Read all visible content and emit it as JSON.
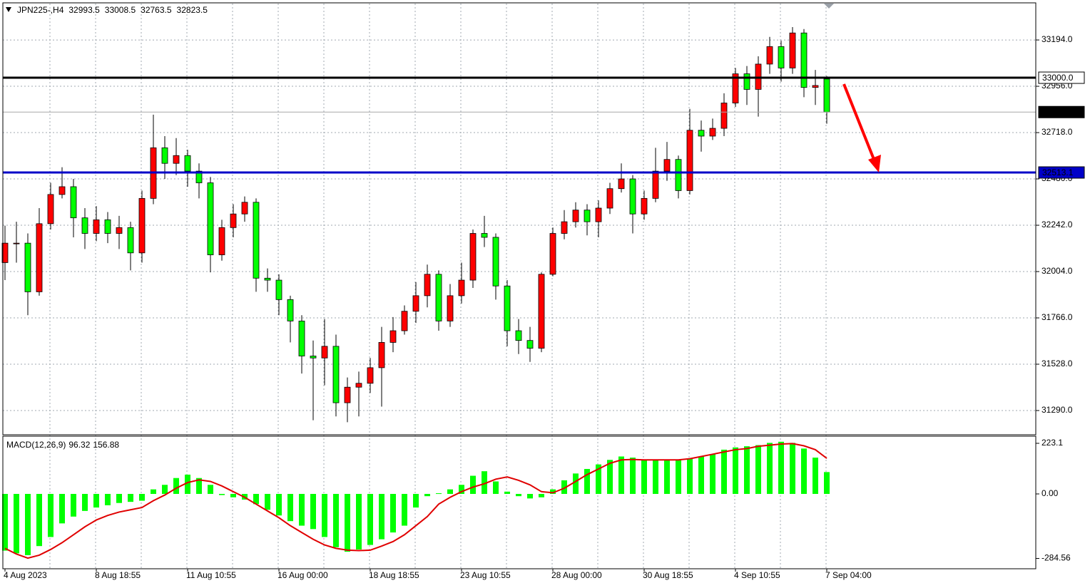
{
  "chart_data": [
    {
      "type": "candlestick",
      "title": "JPN225-,H4",
      "categories": [
        "4 Aug 2023",
        null,
        null,
        null,
        null,
        null,
        null,
        null,
        "8 Aug 18:55",
        null,
        null,
        null,
        null,
        null,
        null,
        null,
        "11 Aug 10:55",
        null,
        null,
        null,
        null,
        null,
        null,
        null,
        "16 Aug 00:00",
        null,
        null,
        null,
        null,
        null,
        null,
        null,
        "18 Aug 18:55",
        null,
        null,
        null,
        null,
        null,
        null,
        null,
        "23 Aug 10:55",
        null,
        null,
        null,
        null,
        null,
        null,
        null,
        "28 Aug 00:00",
        null,
        null,
        null,
        null,
        null,
        null,
        null,
        "30 Aug 18:55",
        null,
        null,
        null,
        null,
        null,
        null,
        null,
        "4 Sep 10:55",
        null,
        null,
        null,
        null,
        null,
        null,
        null,
        "7 Sep 04:00"
      ],
      "open": [
        32050,
        32150,
        32150,
        31900,
        32250,
        32400,
        32440,
        32280,
        32200,
        32270,
        32200,
        32230,
        32100,
        32380,
        32640,
        32560,
        32600,
        32520,
        32460,
        32090,
        32230,
        32300,
        32360,
        31970,
        31960,
        31860,
        31750,
        31570,
        31560,
        31620,
        31330,
        31410,
        31430,
        31510,
        31640,
        31700,
        31800,
        31880,
        31990,
        31750,
        31880,
        31960,
        32200,
        32180,
        31930,
        31700,
        31650,
        31610,
        31990,
        32200,
        32260,
        32320,
        32260,
        32330,
        32430,
        32480,
        32300,
        32380,
        32520,
        32580,
        32420,
        32730,
        32700,
        32740,
        32870,
        33020,
        32940,
        33070,
        33160,
        33050,
        33230,
        32950,
        32993.5
      ],
      "high": [
        32240,
        32260,
        32200,
        32330,
        32460,
        32540,
        32480,
        32330,
        32340,
        32310,
        32290,
        32260,
        32420,
        32810,
        32700,
        32690,
        32630,
        32560,
        32490,
        32270,
        32350,
        32390,
        32380,
        32020,
        31990,
        31880,
        31780,
        31650,
        31760,
        31680,
        31460,
        31490,
        31560,
        31720,
        31770,
        31830,
        31950,
        32040,
        32010,
        31940,
        32050,
        32220,
        32290,
        32200,
        31960,
        31760,
        31720,
        32000,
        32230,
        32320,
        32360,
        32350,
        32370,
        32460,
        32560,
        32500,
        32420,
        32640,
        32670,
        32600,
        32840,
        32780,
        32790,
        32920,
        33050,
        33060,
        33110,
        33210,
        33190,
        33260,
        33250,
        33040,
        33008.5
      ],
      "low": [
        31960,
        32050,
        31780,
        31880,
        32220,
        32380,
        32180,
        32120,
        32160,
        32150,
        32120,
        32010,
        32050,
        32350,
        32480,
        32500,
        32440,
        32380,
        32000,
        32060,
        32180,
        32260,
        31900,
        31900,
        31780,
        31640,
        31480,
        31240,
        31420,
        31260,
        31230,
        31260,
        31380,
        31310,
        31590,
        31680,
        31740,
        31820,
        31700,
        31720,
        31840,
        31920,
        32130,
        31860,
        31620,
        31580,
        31540,
        31590,
        31980,
        32170,
        32230,
        32190,
        32180,
        32300,
        32410,
        32200,
        32270,
        32360,
        32470,
        32380,
        32400,
        32620,
        32680,
        32700,
        32850,
        32860,
        32800,
        33020,
        32980,
        33020,
        32900,
        32860,
        32763.5
      ],
      "close": [
        32150,
        32150,
        31900,
        32250,
        32400,
        32440,
        32280,
        32200,
        32270,
        32200,
        32230,
        32100,
        32380,
        32640,
        32560,
        32600,
        32520,
        32460,
        32090,
        32230,
        32300,
        32360,
        31970,
        31960,
        31860,
        31750,
        31570,
        31560,
        31620,
        31330,
        31410,
        31430,
        31510,
        31640,
        31700,
        31800,
        31880,
        31990,
        31750,
        31880,
        31960,
        32200,
        32180,
        31930,
        31700,
        31650,
        31610,
        31990,
        32200,
        32260,
        32320,
        32260,
        32330,
        32430,
        32480,
        32300,
        32380,
        32520,
        32580,
        32420,
        32730,
        32700,
        32740,
        32870,
        33020,
        32940,
        33070,
        33160,
        33050,
        33230,
        32950,
        32960,
        32823.5
      ],
      "up_color": "#ff0000",
      "down_color": "#00ff00",
      "ylim": [
        31165.5,
        33381
      ],
      "yticks": [
        {
          "value": 33194,
          "label": "33194.0"
        },
        {
          "value": 32956,
          "label": "32956.0"
        },
        {
          "value": 32718,
          "label": "32718.0"
        },
        {
          "value": 32480,
          "label": "32480.0"
        },
        {
          "value": 32242,
          "label": "32242.0"
        },
        {
          "value": 32004,
          "label": "32004.0"
        },
        {
          "value": 31766,
          "label": "31766.0"
        },
        {
          "value": 31528,
          "label": "31528.0"
        },
        {
          "value": 31290,
          "label": "31290.0"
        }
      ],
      "grid": true,
      "hlines": [
        {
          "value": 32823.5,
          "label": "32823.5",
          "color": "#a8a8a8",
          "label_fill": "#000000",
          "label_color": "#ffffff"
        },
        {
          "value": 33000,
          "label": "33000.0",
          "color": "#000000",
          "label_fill": "#ffffff",
          "label_color": "#000000"
        },
        {
          "value": 32513.1,
          "label": "32513.1",
          "color": "#0000c8",
          "label_fill": "#0000c8",
          "label_color": "#ffffff"
        }
      ]
    },
    {
      "type": "macd",
      "title": "MACD(12,26,9)",
      "histogram": [
        -250,
        -262,
        -270,
        -230,
        -190,
        -130,
        -100,
        -75,
        -60,
        -50,
        -40,
        -35,
        -30,
        20,
        40,
        70,
        85,
        70,
        40,
        -5,
        -15,
        -25,
        -45,
        -70,
        -95,
        -120,
        -140,
        -155,
        -190,
        -235,
        -255,
        -245,
        -225,
        -200,
        -170,
        -140,
        -60,
        -10,
        3,
        20,
        40,
        80,
        100,
        55,
        10,
        -10,
        -20,
        -15,
        20,
        60,
        90,
        110,
        130,
        150,
        165,
        160,
        150,
        150,
        150,
        150,
        155,
        165,
        175,
        195,
        205,
        210,
        215,
        225,
        230,
        225,
        200,
        160,
        96.32
      ],
      "signal": [
        -240,
        -265,
        -283,
        -270,
        -245,
        -215,
        -180,
        -145,
        -115,
        -95,
        -80,
        -70,
        -60,
        -30,
        -5,
        25,
        50,
        62,
        55,
        35,
        10,
        -15,
        -45,
        -75,
        -105,
        -140,
        -170,
        -200,
        -225,
        -240,
        -248,
        -250,
        -248,
        -230,
        -210,
        -180,
        -140,
        -100,
        -45,
        -15,
        10,
        30,
        45,
        65,
        75,
        60,
        40,
        10,
        5,
        25,
        55,
        85,
        110,
        135,
        150,
        152,
        150,
        150,
        150,
        150,
        155,
        165,
        175,
        185,
        195,
        200,
        210,
        215,
        220,
        222,
        212,
        195,
        156.88
      ],
      "histogram_color": "#00ff00",
      "signal_color": "#e00000",
      "ylim": [
        -330,
        254.5
      ],
      "yticks": [
        223.1,
        {
          "value": 0,
          "label": "0.00"
        },
        -284.56
      ]
    }
  ]
}
